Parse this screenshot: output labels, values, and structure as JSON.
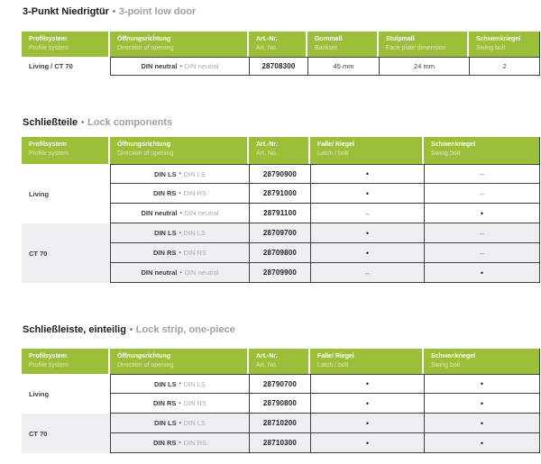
{
  "ui": {
    "bullet": "▪"
  },
  "colors": {
    "brand_green": "#9cbf3a",
    "border_dark": "#3e4144",
    "row_alt_bg": "#edeff1",
    "muted_gray": "#a9abae"
  },
  "headers": {
    "profilsystem_de": "Profilsystem",
    "profilsystem_en": "Profile system",
    "oeffnung_de": "Öffnungsrichtung",
    "oeffnung_en": "Direction of opening",
    "art_de": "Art.-Nr.",
    "art_en": "Art. No.",
    "dornmass_de": "Dornmaß",
    "dornmass_en": "Backset",
    "stulpmass_de": "Stulpmaß",
    "stulpmass_en": "Face plate dimension",
    "schwenkriegel_de": "Schwenkriegel",
    "schwenkriegel_en": "Swing bolt",
    "falle_de": "Falle/ Riegel",
    "falle_en": "Latch / bolt"
  },
  "s1": {
    "title_de": "3-Punkt Niedrigtür",
    "title_en": "3-point low door",
    "row": {
      "profile": "Living / CT 70",
      "opening_de": "DIN neutral",
      "opening_en": "DIN neutral",
      "art": "28708300",
      "backset": "45 mm",
      "faceplate": "24 mm",
      "swing": "2"
    }
  },
  "s2": {
    "title_de": "Schließteile",
    "title_en": "Lock components",
    "groups": [
      {
        "profile": "Living",
        "rows": [
          {
            "opening_de": "DIN LS",
            "opening_en": "DIN LS",
            "art": "28790900",
            "latch": "•",
            "swing": "–"
          },
          {
            "opening_de": "DIN RS",
            "opening_en": "DIN RS",
            "art": "28791000",
            "latch": "•",
            "swing": "–"
          },
          {
            "opening_de": "DIN neutral",
            "opening_en": "DIN neutral",
            "art": "28791100",
            "latch": "–",
            "swing": "•"
          }
        ]
      },
      {
        "profile": "CT 70",
        "rows": [
          {
            "opening_de": "DIN LS",
            "opening_en": "DIN LS",
            "art": "28709700",
            "latch": "•",
            "swing": "–"
          },
          {
            "opening_de": "DIN RS",
            "opening_en": "DIN RS",
            "art": "28709800",
            "latch": "•",
            "swing": "–"
          },
          {
            "opening_de": "DIN neutral",
            "opening_en": "DIN neutral",
            "art": "28709900",
            "latch": "–",
            "swing": "•"
          }
        ]
      }
    ]
  },
  "s3": {
    "title_de": "Schließleiste, einteilig",
    "title_en": "Lock strip, one-piece",
    "groups": [
      {
        "profile": "Living",
        "rows": [
          {
            "opening_de": "DIN LS",
            "opening_en": "DIN LS",
            "art": "28790700",
            "latch": "•",
            "swing": "•"
          },
          {
            "opening_de": "DIN RS",
            "opening_en": "DIN RS",
            "art": "28790800",
            "latch": "•",
            "swing": "•"
          }
        ]
      },
      {
        "profile": "CT 70",
        "rows": [
          {
            "opening_de": "DIN LS",
            "opening_en": "DIN LS",
            "art": "28710200",
            "latch": "•",
            "swing": "•"
          },
          {
            "opening_de": "DIN RS",
            "opening_en": "DIN RS",
            "art": "28710300",
            "latch": "•",
            "swing": "•"
          }
        ]
      }
    ]
  }
}
